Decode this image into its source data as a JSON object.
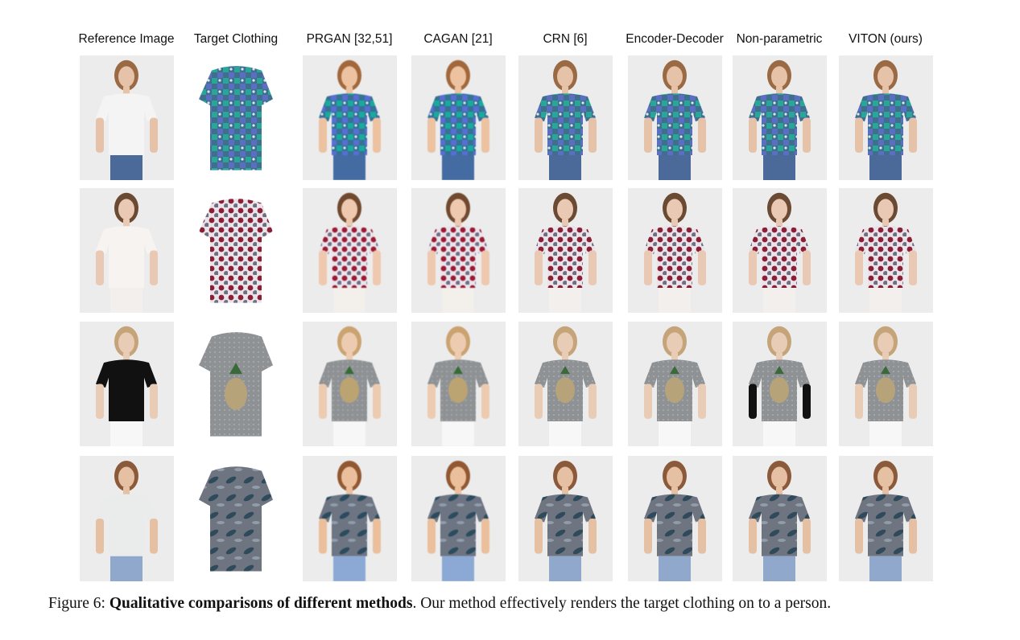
{
  "figure": {
    "columns": [
      "Reference Image",
      "Target Clothing",
      "PRGAN [32,51]",
      "CAGAN [21]",
      "CRN [6]",
      "Encoder-Decoder",
      "Non-parametric",
      "VITON (ours)"
    ],
    "rows": [
      {
        "skin": "#e6c3a8",
        "hair": "#9a6a45",
        "top_ref": "#f4f4f4",
        "top": "#3f6f8c",
        "pattern": "#2aa59a",
        "pattern2": "#5b6fc2",
        "bottom": "#4b6a99",
        "style": "patch"
      },
      {
        "skin": "#e9c9b4",
        "hair": "#6b4a34",
        "top_ref": "#f7f3f1",
        "top": "#4a4a5e",
        "pattern": "#8c1f35",
        "pattern2": "#d7cfd8",
        "bottom": "#f2efec",
        "style": "dots"
      },
      {
        "skin": "#e8ccb6",
        "hair": "#c5a47a",
        "top_ref": "#111111",
        "top": "#8f9294",
        "pattern": "#b7a37a",
        "pattern2": "#3b6a3a",
        "bottom": "#f7f7f7",
        "style": "pineapple"
      },
      {
        "skin": "#e5c0a3",
        "hair": "#8a5a3a",
        "top_ref": "#e9ecea",
        "top": "#6e7480",
        "pattern": "#2f4a5a",
        "pattern2": "#a9b7c4",
        "bottom": "#8fa8cc",
        "style": "leaves"
      }
    ],
    "caption_label": "Figure 6:",
    "caption_bold": "Qualitative comparisons of different methods",
    "caption_rest": ". Our method effectively renders the target clothing on to a person."
  }
}
